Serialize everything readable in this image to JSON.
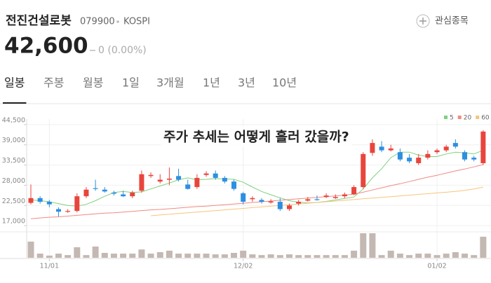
{
  "header": {
    "title": "전진건설로봇",
    "code": "079900",
    "market": "KOSPI",
    "price": "42,600",
    "change": "0 (0.00%)",
    "watch_button": "관심종목"
  },
  "tabs": [
    "일봉",
    "주봉",
    "월봉",
    "1일",
    "3개월",
    "1년",
    "3년",
    "10년"
  ],
  "selected_tab": 0,
  "chart_data": {
    "type": "candlestick",
    "annotation": "주가 추세는 어떻게 흘러 갔을까?",
    "categories": [
      null,
      null,
      "11/01",
      null,
      null,
      null,
      null,
      null,
      null,
      null,
      null,
      null,
      null,
      null,
      null,
      null,
      null,
      null,
      null,
      null,
      null,
      null,
      null,
      "12/02",
      null,
      null,
      null,
      null,
      null,
      null,
      null,
      null,
      null,
      null,
      null,
      null,
      null,
      null,
      null,
      null,
      null,
      null,
      null,
      null,
      "01/02",
      null,
      null,
      null,
      null,
      null
    ],
    "open": [
      23200,
      24500,
      23500,
      21500,
      20800,
      21000,
      25000,
      27200,
      26800,
      26000,
      25500,
      25000,
      26500,
      30500,
      29000,
      29500,
      30500,
      28200,
      27500,
      30800,
      31200,
      30000,
      29000,
      25800,
      24200,
      24000,
      23300,
      23500,
      21500,
      23000,
      23800,
      24200,
      24800,
      24500,
      25000,
      25500,
      27500,
      36800,
      38500,
      37500,
      37000,
      35500,
      34000,
      35500,
      37000,
      37500,
      39500,
      37000,
      35500,
      34000
    ],
    "high": [
      28200,
      25000,
      24000,
      22000,
      21500,
      25800,
      27500,
      29500,
      27500,
      26500,
      26500,
      26500,
      32000,
      31500,
      31000,
      32800,
      32500,
      29500,
      31000,
      31800,
      32000,
      30500,
      29500,
      26200,
      25000,
      24500,
      24200,
      24500,
      23000,
      24000,
      24800,
      25200,
      25800,
      25500,
      26000,
      28000,
      37000,
      40500,
      40000,
      39000,
      38000,
      36500,
      36500,
      37500,
      38000,
      39000,
      40500,
      37500,
      36000,
      43000
    ],
    "low": [
      22800,
      23000,
      22000,
      19500,
      20500,
      20600,
      24500,
      26500,
      26000,
      25200,
      24800,
      24500,
      26000,
      30000,
      28500,
      28000,
      29000,
      26800,
      27000,
      30300,
      29500,
      28500,
      26500,
      22800,
      23500,
      23000,
      23000,
      21000,
      21000,
      22500,
      23500,
      23800,
      24500,
      24300,
      24500,
      25300,
      27000,
      36000,
      37000,
      37200,
      34500,
      34000,
      33500,
      35000,
      36500,
      37000,
      38000,
      34500,
      34500,
      33500
    ],
    "close": [
      24500,
      23500,
      22800,
      20800,
      21000,
      25000,
      26800,
      27000,
      26300,
      25700,
      25000,
      26000,
      31000,
      30800,
      29500,
      29800,
      29500,
      27000,
      30000,
      31200,
      30000,
      29000,
      27000,
      23500,
      24500,
      23500,
      23600,
      21500,
      22500,
      23500,
      24200,
      24000,
      25200,
      24800,
      25500,
      27500,
      36500,
      39500,
      37500,
      38000,
      35000,
      34500,
      35500,
      36500,
      37500,
      38500,
      38500,
      35000,
      35000,
      42600
    ],
    "up_color": "#e8453c",
    "down_color": "#2d8fe0",
    "volume": [
      66,
      17,
      9,
      17,
      11,
      43,
      11,
      46,
      20,
      17,
      17,
      17,
      34,
      17,
      23,
      29,
      17,
      17,
      17,
      17,
      14,
      14,
      20,
      29,
      14,
      11,
      14,
      11,
      14,
      11,
      11,
      11,
      11,
      11,
      11,
      29,
      100,
      100,
      11,
      29,
      17,
      11,
      17,
      17,
      11,
      17,
      23,
      17,
      11,
      86
    ],
    "volume_ylim": [
      0,
      100
    ],
    "volume_color": "#c4b8b2",
    "series": [
      {
        "name": "5",
        "color": "#7ed17e",
        "values": [
          24000,
          23800,
          23500,
          23000,
          22500,
          22300,
          22800,
          23800,
          25000,
          26000,
          26300,
          26000,
          26200,
          27000,
          27800,
          28600,
          29500,
          30000,
          29500,
          29600,
          29800,
          29700,
          29600,
          28800,
          27500,
          26300,
          25400,
          24600,
          23800,
          23400,
          23200,
          23300,
          23600,
          24000,
          24400,
          24800,
          27000,
          30000,
          32500,
          35500,
          37000,
          37000,
          36200,
          35800,
          35800,
          36500,
          37000,
          36800,
          36500,
          37500
        ]
      },
      {
        "name": "20",
        "color": "#f08a82",
        "values": [
          18900,
          19100,
          19300,
          19400,
          19600,
          19800,
          20000,
          20200,
          20400,
          20500,
          20700,
          20900,
          21100,
          21300,
          21400,
          21600,
          21800,
          22000,
          22200,
          22300,
          22500,
          22700,
          22900,
          23100,
          23300,
          23500,
          23700,
          23900,
          24100,
          24300,
          24500,
          24700,
          24900,
          25100,
          25300,
          25600,
          26100,
          26700,
          27300,
          27900,
          28400,
          29000,
          29600,
          30200,
          30700,
          31300,
          31900,
          32400,
          33000,
          33600
        ]
      },
      {
        "name": "60",
        "color": "#f7c47c",
        "values": [
          null,
          null,
          null,
          null,
          null,
          null,
          null,
          null,
          null,
          null,
          null,
          null,
          null,
          19700,
          19900,
          20100,
          20300,
          20500,
          20700,
          20900,
          21100,
          21300,
          21500,
          21700,
          21900,
          22100,
          22300,
          22500,
          22700,
          22900,
          23100,
          23300,
          23500,
          23700,
          23900,
          24100,
          24300,
          24500,
          24700,
          24900,
          25100,
          25300,
          25500,
          25700,
          25900,
          26100,
          26300,
          26600,
          27000,
          27500
        ]
      }
    ],
    "ylim": [
      15500,
      46000
    ],
    "yticks": [
      {
        "value": 17000,
        "label": "17,000"
      },
      {
        "value": 22500,
        "label": "22,500"
      },
      {
        "value": 28000,
        "label": "28,000"
      },
      {
        "value": 33500,
        "label": "33,500"
      },
      {
        "value": 39000,
        "label": "39,000"
      },
      {
        "value": 44500,
        "label": "44,500"
      }
    ],
    "grid": true
  }
}
